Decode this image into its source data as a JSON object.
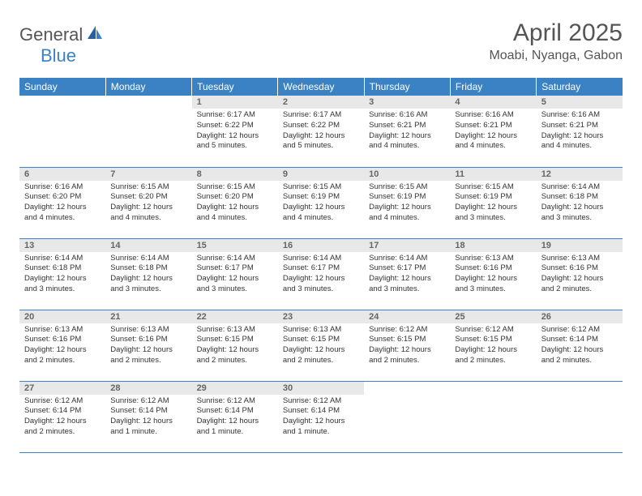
{
  "brand": {
    "part1": "General",
    "part2": "Blue"
  },
  "title": "April 2025",
  "location": "Moabi, Nyanga, Gabon",
  "colors": {
    "accent": "#3b82c4",
    "header_text": "#ffffff",
    "daynum_bg": "#e8e8e8",
    "daynum_text": "#666666",
    "body_text": "#333333",
    "page_bg": "#ffffff",
    "rule": "#3b82c4"
  },
  "fonts": {
    "title_size_pt": 22,
    "location_size_pt": 12,
    "header_cell_size_pt": 9,
    "daynum_size_pt": 8,
    "body_size_pt": 7
  },
  "weekdays": [
    "Sunday",
    "Monday",
    "Tuesday",
    "Wednesday",
    "Thursday",
    "Friday",
    "Saturday"
  ],
  "weeks": [
    [
      {
        "empty": true
      },
      {
        "empty": true
      },
      {
        "num": "1",
        "sunrise": "Sunrise: 6:17 AM",
        "sunset": "Sunset: 6:22 PM",
        "daylight": "Daylight: 12 hours and 5 minutes."
      },
      {
        "num": "2",
        "sunrise": "Sunrise: 6:17 AM",
        "sunset": "Sunset: 6:22 PM",
        "daylight": "Daylight: 12 hours and 5 minutes."
      },
      {
        "num": "3",
        "sunrise": "Sunrise: 6:16 AM",
        "sunset": "Sunset: 6:21 PM",
        "daylight": "Daylight: 12 hours and 4 minutes."
      },
      {
        "num": "4",
        "sunrise": "Sunrise: 6:16 AM",
        "sunset": "Sunset: 6:21 PM",
        "daylight": "Daylight: 12 hours and 4 minutes."
      },
      {
        "num": "5",
        "sunrise": "Sunrise: 6:16 AM",
        "sunset": "Sunset: 6:21 PM",
        "daylight": "Daylight: 12 hours and 4 minutes."
      }
    ],
    [
      {
        "num": "6",
        "sunrise": "Sunrise: 6:16 AM",
        "sunset": "Sunset: 6:20 PM",
        "daylight": "Daylight: 12 hours and 4 minutes."
      },
      {
        "num": "7",
        "sunrise": "Sunrise: 6:15 AM",
        "sunset": "Sunset: 6:20 PM",
        "daylight": "Daylight: 12 hours and 4 minutes."
      },
      {
        "num": "8",
        "sunrise": "Sunrise: 6:15 AM",
        "sunset": "Sunset: 6:20 PM",
        "daylight": "Daylight: 12 hours and 4 minutes."
      },
      {
        "num": "9",
        "sunrise": "Sunrise: 6:15 AM",
        "sunset": "Sunset: 6:19 PM",
        "daylight": "Daylight: 12 hours and 4 minutes."
      },
      {
        "num": "10",
        "sunrise": "Sunrise: 6:15 AM",
        "sunset": "Sunset: 6:19 PM",
        "daylight": "Daylight: 12 hours and 4 minutes."
      },
      {
        "num": "11",
        "sunrise": "Sunrise: 6:15 AM",
        "sunset": "Sunset: 6:19 PM",
        "daylight": "Daylight: 12 hours and 3 minutes."
      },
      {
        "num": "12",
        "sunrise": "Sunrise: 6:14 AM",
        "sunset": "Sunset: 6:18 PM",
        "daylight": "Daylight: 12 hours and 3 minutes."
      }
    ],
    [
      {
        "num": "13",
        "sunrise": "Sunrise: 6:14 AM",
        "sunset": "Sunset: 6:18 PM",
        "daylight": "Daylight: 12 hours and 3 minutes."
      },
      {
        "num": "14",
        "sunrise": "Sunrise: 6:14 AM",
        "sunset": "Sunset: 6:18 PM",
        "daylight": "Daylight: 12 hours and 3 minutes."
      },
      {
        "num": "15",
        "sunrise": "Sunrise: 6:14 AM",
        "sunset": "Sunset: 6:17 PM",
        "daylight": "Daylight: 12 hours and 3 minutes."
      },
      {
        "num": "16",
        "sunrise": "Sunrise: 6:14 AM",
        "sunset": "Sunset: 6:17 PM",
        "daylight": "Daylight: 12 hours and 3 minutes."
      },
      {
        "num": "17",
        "sunrise": "Sunrise: 6:14 AM",
        "sunset": "Sunset: 6:17 PM",
        "daylight": "Daylight: 12 hours and 3 minutes."
      },
      {
        "num": "18",
        "sunrise": "Sunrise: 6:13 AM",
        "sunset": "Sunset: 6:16 PM",
        "daylight": "Daylight: 12 hours and 3 minutes."
      },
      {
        "num": "19",
        "sunrise": "Sunrise: 6:13 AM",
        "sunset": "Sunset: 6:16 PM",
        "daylight": "Daylight: 12 hours and 2 minutes."
      }
    ],
    [
      {
        "num": "20",
        "sunrise": "Sunrise: 6:13 AM",
        "sunset": "Sunset: 6:16 PM",
        "daylight": "Daylight: 12 hours and 2 minutes."
      },
      {
        "num": "21",
        "sunrise": "Sunrise: 6:13 AM",
        "sunset": "Sunset: 6:16 PM",
        "daylight": "Daylight: 12 hours and 2 minutes."
      },
      {
        "num": "22",
        "sunrise": "Sunrise: 6:13 AM",
        "sunset": "Sunset: 6:15 PM",
        "daylight": "Daylight: 12 hours and 2 minutes."
      },
      {
        "num": "23",
        "sunrise": "Sunrise: 6:13 AM",
        "sunset": "Sunset: 6:15 PM",
        "daylight": "Daylight: 12 hours and 2 minutes."
      },
      {
        "num": "24",
        "sunrise": "Sunrise: 6:12 AM",
        "sunset": "Sunset: 6:15 PM",
        "daylight": "Daylight: 12 hours and 2 minutes."
      },
      {
        "num": "25",
        "sunrise": "Sunrise: 6:12 AM",
        "sunset": "Sunset: 6:15 PM",
        "daylight": "Daylight: 12 hours and 2 minutes."
      },
      {
        "num": "26",
        "sunrise": "Sunrise: 6:12 AM",
        "sunset": "Sunset: 6:14 PM",
        "daylight": "Daylight: 12 hours and 2 minutes."
      }
    ],
    [
      {
        "num": "27",
        "sunrise": "Sunrise: 6:12 AM",
        "sunset": "Sunset: 6:14 PM",
        "daylight": "Daylight: 12 hours and 2 minutes."
      },
      {
        "num": "28",
        "sunrise": "Sunrise: 6:12 AM",
        "sunset": "Sunset: 6:14 PM",
        "daylight": "Daylight: 12 hours and 1 minute."
      },
      {
        "num": "29",
        "sunrise": "Sunrise: 6:12 AM",
        "sunset": "Sunset: 6:14 PM",
        "daylight": "Daylight: 12 hours and 1 minute."
      },
      {
        "num": "30",
        "sunrise": "Sunrise: 6:12 AM",
        "sunset": "Sunset: 6:14 PM",
        "daylight": "Daylight: 12 hours and 1 minute."
      },
      {
        "empty": true
      },
      {
        "empty": true
      },
      {
        "empty": true
      }
    ]
  ]
}
